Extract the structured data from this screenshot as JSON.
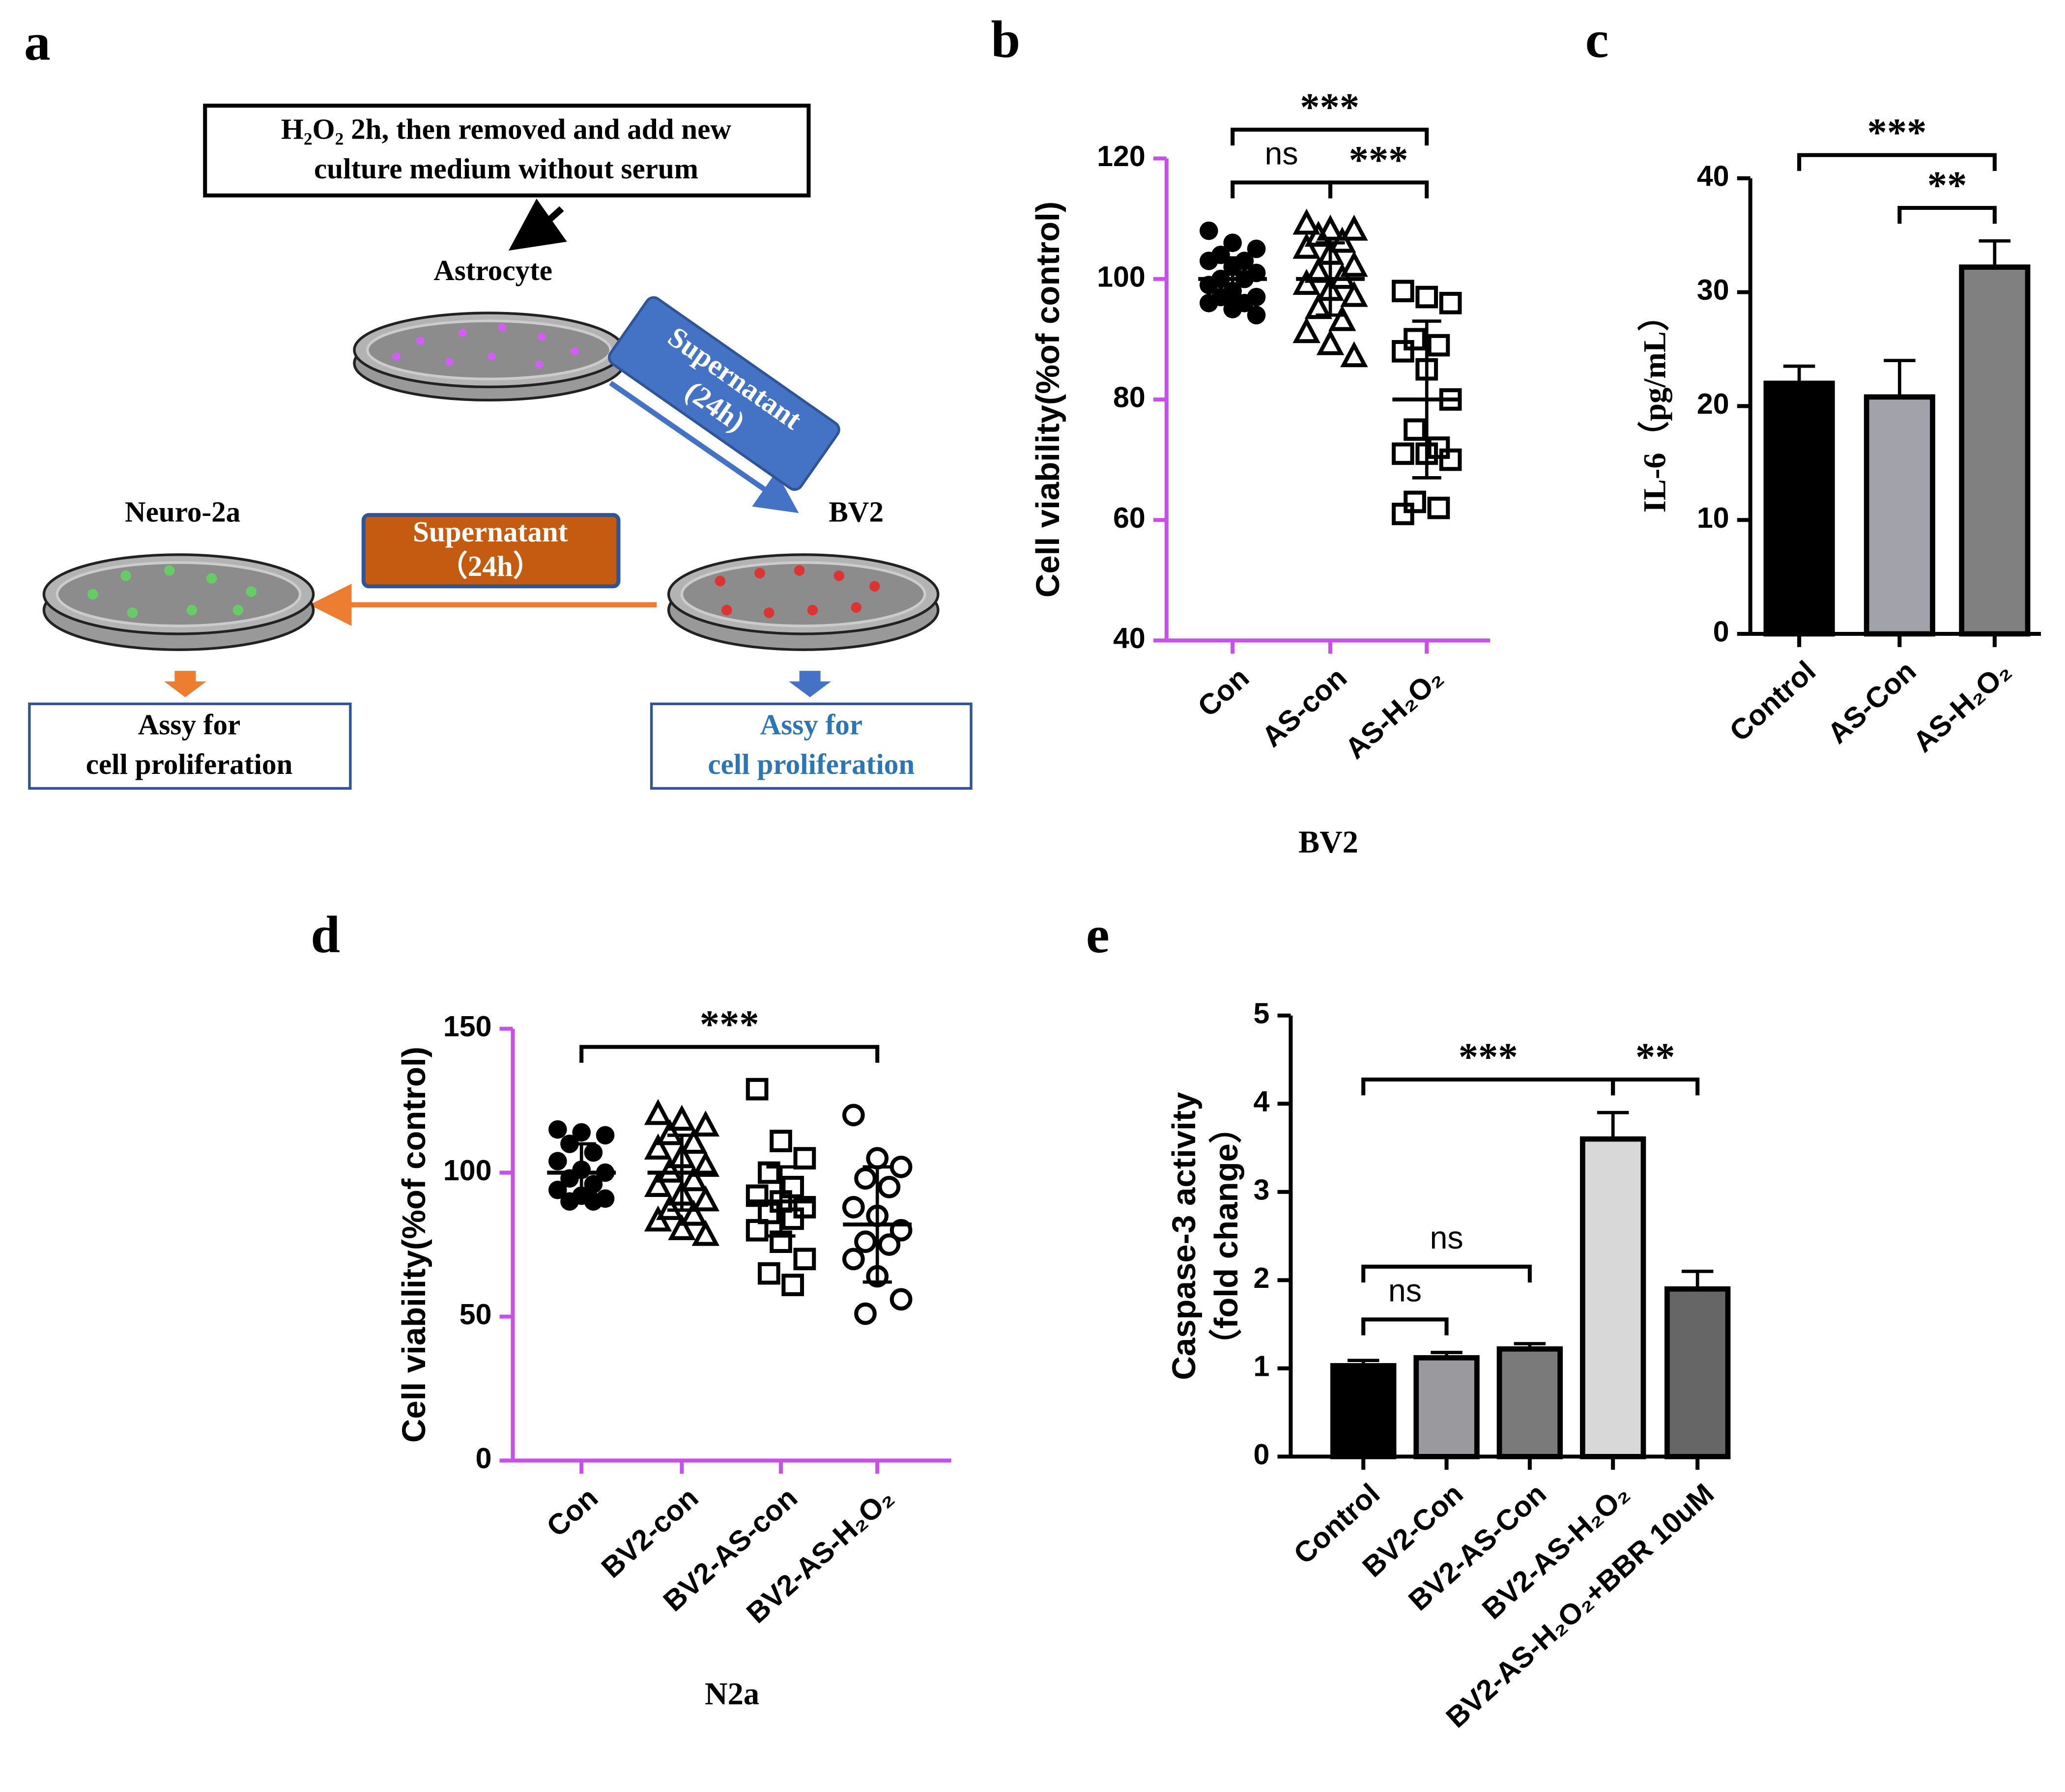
{
  "diagram": {
    "label": "a",
    "instruction": [
      "H₂O₂ 2h, then removed and add new",
      "culture medium without serum"
    ],
    "cells": [
      "Astrocyte",
      "BV2",
      "Neuro-2a"
    ],
    "transfers": [
      {
        "lines": [
          "Supernatant",
          "(24h)"
        ]
      },
      {
        "lines": [
          "Supernatant",
          "（24h）"
        ]
      }
    ],
    "assays": [
      [
        "Assy for",
        "cell proliferation"
      ],
      [
        "Assy for",
        "cell proliferation"
      ]
    ]
  },
  "chart_data": [
    {
      "type": "dot",
      "label": "b",
      "ylabel": "Cell viability(%of control)",
      "xlabel": "BV2",
      "categories": [
        "Con",
        "AS-con",
        "AS-H₂O₂"
      ],
      "markers": [
        "filled-circle",
        "triangle",
        "square"
      ],
      "points": [
        [
          108,
          106,
          105,
          104,
          103,
          103,
          102,
          101,
          100,
          100,
          99,
          98,
          97,
          97,
          96,
          96,
          95,
          94
        ],
        [
          109,
          108,
          108,
          107,
          106,
          105,
          104,
          102,
          101,
          100,
          99,
          98,
          97,
          95,
          93,
          91,
          89,
          87
        ],
        [
          98,
          97,
          96,
          90,
          89,
          88,
          85,
          80,
          75,
          72,
          71,
          71,
          70,
          63,
          62,
          61
        ]
      ],
      "means": [
        100,
        100,
        80
      ],
      "sd": [
        3.5,
        6,
        13
      ],
      "ylim": [
        40,
        120
      ],
      "yticks": [
        40,
        60,
        80,
        100,
        120
      ],
      "axis_color": "#c84fe8",
      "annotations": [
        {
          "text": "ns",
          "from": 0,
          "to": 1
        },
        {
          "text": "***",
          "from": 1,
          "to": 2
        },
        {
          "text": "***",
          "from": 0,
          "to": 2
        }
      ]
    },
    {
      "type": "bar",
      "label": "c",
      "ylabel": "IL-6（pg/mL）",
      "categories": [
        "Control",
        "AS-Con",
        "AS-H₂O₂"
      ],
      "values": [
        22,
        20.8,
        32.2
      ],
      "errors": [
        1.5,
        3.2,
        2.3
      ],
      "colors": [
        "#000000",
        "#a2a2aa",
        "#808080"
      ],
      "ylim": [
        0,
        40
      ],
      "yticks": [
        0,
        10,
        20,
        30,
        40
      ],
      "axis_color": "#000000",
      "annotations": [
        {
          "text": "**",
          "from": 1,
          "to": 2
        },
        {
          "text": "***",
          "from": 0,
          "to": 2
        }
      ]
    },
    {
      "type": "dot",
      "label": "d",
      "ylabel": "Cell viability(%of control)",
      "xlabel": "N2a",
      "categories": [
        "Con",
        "BV2-con",
        "BV2-AS-con",
        "BV2-AS-H₂O₂"
      ],
      "markers": [
        "filled-circle",
        "triangle",
        "square",
        "circle"
      ],
      "points": [
        [
          115,
          114,
          113,
          110,
          107,
          104,
          101,
          100,
          98,
          96,
          94,
          92,
          91,
          90,
          90
        ],
        [
          120,
          118,
          116,
          113,
          110,
          108,
          105,
          102,
          100,
          97,
          95,
          92,
          90,
          87,
          85,
          83,
          80,
          78
        ],
        [
          129,
          111,
          105,
          100,
          95,
          92,
          90,
          88,
          86,
          84,
          80,
          76,
          70,
          65,
          61
        ],
        [
          120,
          105,
          102,
          98,
          95,
          88,
          85,
          80,
          76,
          75,
          70,
          64,
          56,
          51
        ]
      ],
      "means": [
        100,
        100,
        90,
        82
      ],
      "sd": [
        10,
        13,
        12,
        20
      ],
      "ylim": [
        0,
        150
      ],
      "yticks": [
        0,
        50,
        100,
        150
      ],
      "axis_color": "#c84fe8",
      "annotations": [
        {
          "text": "***",
          "from": 0,
          "to": 3
        }
      ]
    },
    {
      "type": "bar",
      "label": "e",
      "ylabel": [
        "Caspase-3 activity",
        "（fold change）"
      ],
      "categories": [
        "Control",
        "BV2-Con",
        "BV2-AS-Con",
        "BV2-AS-H₂O₂",
        "BV2-AS-H₂O₂+BBR 10uM"
      ],
      "values": [
        1.03,
        1.12,
        1.22,
        3.6,
        1.9
      ],
      "errors": [
        0.06,
        0.06,
        0.06,
        0.3,
        0.2
      ],
      "colors": [
        "#000000",
        "#9a9a9e",
        "#7a7a7a",
        "#d8d8d8",
        "#666666"
      ],
      "ylim": [
        0,
        5
      ],
      "yticks": [
        0,
        1,
        2,
        3,
        4,
        5
      ],
      "axis_color": "#000000",
      "annotations": [
        {
          "text": "ns",
          "from": 0,
          "to": 1
        },
        {
          "text": "ns",
          "from": 0,
          "to": 2
        },
        {
          "text": "**",
          "from": 3,
          "to": 4
        },
        {
          "text": "***",
          "from": 0,
          "to": 3
        }
      ]
    }
  ]
}
